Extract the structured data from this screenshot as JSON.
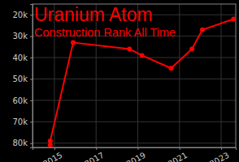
{
  "chart_data": {
    "type": "line",
    "title": "Uranium Atom",
    "subtitle": "Construction Rank All Time",
    "x": [
      2014.8,
      2014.8,
      2015.9,
      2018.6,
      2019.2,
      2020.6,
      2021.6,
      2022.1,
      2023.6
    ],
    "values": [
      81000,
      79000,
      33000,
      36000,
      39000,
      45000,
      36000,
      27000,
      22000
    ],
    "color": "#ff0000",
    "marker": "circle",
    "grid": true,
    "xlim": [
      2013.95,
      2023.7
    ],
    "xticks": [
      2015,
      2017,
      2019,
      2021,
      2023
    ],
    "ylim": [
      15000,
      82000
    ],
    "yticks": [
      {
        "value": 20000,
        "label": "20k"
      },
      {
        "value": 30000,
        "label": "30k"
      },
      {
        "value": 40000,
        "label": "40k"
      },
      {
        "value": 50000,
        "label": "50k"
      },
      {
        "value": 60000,
        "label": "60k"
      },
      {
        "value": 70000,
        "label": "70k"
      },
      {
        "value": 80000,
        "label": "80k"
      }
    ]
  }
}
